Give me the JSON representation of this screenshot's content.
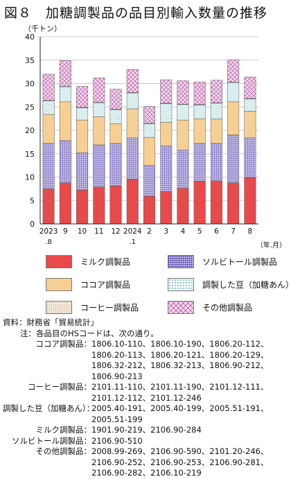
{
  "title": "図８　加糖調製品の品目別輸入数量の推移",
  "unit_label": "（千トン）",
  "chart_data": {
    "type": "bar",
    "stacked": true,
    "xlabel": "（年.月）",
    "ylabel": "（千トン）",
    "ylim": [
      0,
      40
    ],
    "yticks": [
      0,
      5,
      10,
      15,
      20,
      25,
      30,
      35,
      40
    ],
    "categories": [
      "2023.8",
      "9",
      "10",
      "11",
      "12",
      "2024.1",
      "2",
      "3",
      "4",
      "5",
      "6",
      "7",
      "8"
    ],
    "category_labels": [
      {
        "line1": "2023",
        "line2": ".8"
      },
      {
        "line1": "9",
        "line2": ""
      },
      {
        "line1": "10",
        "line2": ""
      },
      {
        "line1": "11",
        "line2": ""
      },
      {
        "line1": "12",
        "line2": ""
      },
      {
        "line1": "2024",
        "line2": ".1"
      },
      {
        "line1": "2",
        "line2": ""
      },
      {
        "line1": "3",
        "line2": ""
      },
      {
        "line1": "4",
        "line2": ""
      },
      {
        "line1": "5",
        "line2": ""
      },
      {
        "line1": "6",
        "line2": ""
      },
      {
        "line1": "7",
        "line2": ""
      },
      {
        "line1": "8",
        "line2": ""
      }
    ],
    "series": [
      {
        "name": "ミルク調製品",
        "key": "milk",
        "color": "#e8494a",
        "values": [
          7.5,
          8.8,
          7.2,
          7.9,
          8.1,
          9.5,
          5.9,
          6.9,
          7.6,
          9.1,
          9.2,
          8.8,
          9.9
        ]
      },
      {
        "name": "ソルビトール調製品",
        "key": "sorbitol",
        "color": "#8a79c6",
        "values": [
          9.7,
          9.0,
          8.0,
          9.0,
          9.1,
          8.9,
          6.6,
          9.8,
          8.2,
          8.1,
          8.0,
          10.2,
          8.5
        ]
      },
      {
        "name": "ココア調製品",
        "key": "cocoa",
        "color": "#f7cf95",
        "values": [
          6.2,
          8.3,
          7.0,
          6.0,
          4.2,
          6.2,
          6.0,
          5.0,
          6.4,
          5.3,
          5.2,
          7.1,
          5.7
        ]
      },
      {
        "name": "調製した豆（加糖あん）",
        "key": "beans",
        "color": "#e2f2f4",
        "values": [
          2.9,
          3.2,
          2.6,
          3.0,
          3.0,
          3.4,
          2.9,
          4.0,
          3.3,
          2.9,
          3.4,
          4.1,
          2.6
        ]
      },
      {
        "name": "コーヒー調製品",
        "key": "coffee",
        "color": "#e8d8c2",
        "values": [
          0.1,
          0.1,
          0.1,
          0.1,
          0.1,
          0.1,
          0.1,
          0.1,
          0.1,
          0.1,
          0.1,
          0.1,
          0.1
        ]
      },
      {
        "name": "その他調製品",
        "key": "other",
        "color": "#f2cfe8",
        "values": [
          5.6,
          5.5,
          4.5,
          5.2,
          4.3,
          4.9,
          3.6,
          5.0,
          5.0,
          4.8,
          4.8,
          4.8,
          4.6
        ]
      }
    ]
  },
  "legend": [
    {
      "label": "ミルク調製品",
      "key": "milk"
    },
    {
      "label": "ソルビトール調製品",
      "key": "sorbitol"
    },
    {
      "label": "ココア調製品",
      "key": "cocoa"
    },
    {
      "label": "調製した豆（加糖あん）",
      "key": "beans"
    },
    {
      "label": "コーヒー調製品",
      "key": "coffee"
    },
    {
      "label": "その他調製品",
      "key": "other"
    }
  ],
  "notes": {
    "source_label": "資料：",
    "source_text": "財務省「貿易統計」",
    "note_label": "注：",
    "note_text": "各品目のHSコードは、次の通り。",
    "items": [
      {
        "label": "ココア調製品：",
        "codes": "1806.10-110、1806.10-190、1806.20-112、1806.20-113、1806.20-121、1806.20-129、1806.32-212、1806.32-213、1806.90-212、1806.90-213"
      },
      {
        "label": "コーヒー調製品：",
        "codes": "2101.11-110、2101.11-190、2101.12-111、2101.12-112、2101.12-246"
      },
      {
        "label": "調製した豆（加糖あん）：",
        "codes": "2005.40-191、2005.40-199、2005.51-191、2005.51-199"
      },
      {
        "label": "ミルク調製品：",
        "codes": "1901.90-219、2106.90-284"
      },
      {
        "label": "ソルビトール調製品：",
        "codes": "2106.90-510"
      },
      {
        "label": "その他調製品：",
        "codes": "2008.99-269、2106.90-590、2101.20-246、2106.90-252、2106.90-253、2106.90-281、2106.90-282、2106.10-219"
      }
    ]
  }
}
